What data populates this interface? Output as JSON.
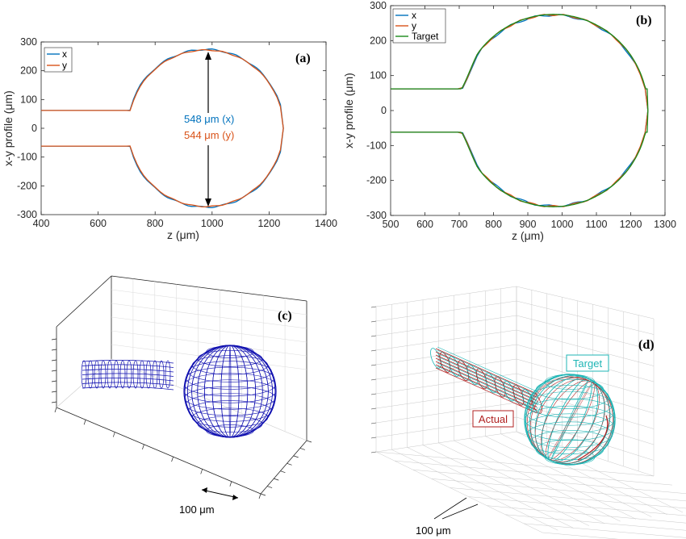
{
  "chart_data": [
    {
      "type": "line",
      "panel_label": "(a)",
      "xlabel": "z (μm)",
      "ylabel": "x-y profile (μm)",
      "xlim": [
        400,
        1400
      ],
      "ylim": [
        -300,
        300
      ],
      "xticks": [
        "400",
        "600",
        "800",
        "1000",
        "1200",
        "1400"
      ],
      "yticks": [
        "300",
        "200",
        "100",
        "0",
        "-100",
        "-200",
        "-300"
      ],
      "series": [
        {
          "name": "x",
          "color": "#0072BD"
        },
        {
          "name": "y",
          "color": "#D95319"
        }
      ],
      "annotations": [
        {
          "text": "548 μm (x)",
          "color": "#0072BD"
        },
        {
          "text": "544 μm (y)",
          "color": "#D95319"
        }
      ],
      "profile": {
        "neck_radius": 62,
        "neck_end_z": 660,
        "sphere_center_z": 978,
        "sphere_radius_x": 274,
        "sphere_radius_y": 272,
        "tip_z": 1250
      }
    },
    {
      "type": "line",
      "panel_label": "(b)",
      "xlabel": "z (μm)",
      "ylabel": "x-y profile (μm)",
      "xlim": [
        500,
        1300
      ],
      "ylim": [
        -300,
        300
      ],
      "xticks": [
        "500",
        "600",
        "700",
        "800",
        "900",
        "1000",
        "1100",
        "1200",
        "1300"
      ],
      "yticks": [
        "300",
        "200",
        "100",
        "0",
        "-100",
        "-200",
        "-300"
      ],
      "series": [
        {
          "name": "x",
          "color": "#0072BD"
        },
        {
          "name": "y",
          "color": "#D95319"
        },
        {
          "name": "Target",
          "color": "#1A8A1A"
        }
      ],
      "profile": {
        "neck_radius": 62,
        "neck_end_z": 700,
        "sphere_center_z": 975,
        "sphere_radius": 275,
        "tip_z": 1250
      }
    },
    {
      "type": "3d-wireframe",
      "panel_label": "(c)",
      "scale_bar": "100 μm",
      "color": "#1010B0"
    },
    {
      "type": "3d-wireframe",
      "panel_label": "(d)",
      "scale_bar": "100 μm",
      "series": [
        {
          "name": "Target",
          "color": "#1FB5B5"
        },
        {
          "name": "Actual",
          "color": "#B02020"
        }
      ]
    }
  ]
}
